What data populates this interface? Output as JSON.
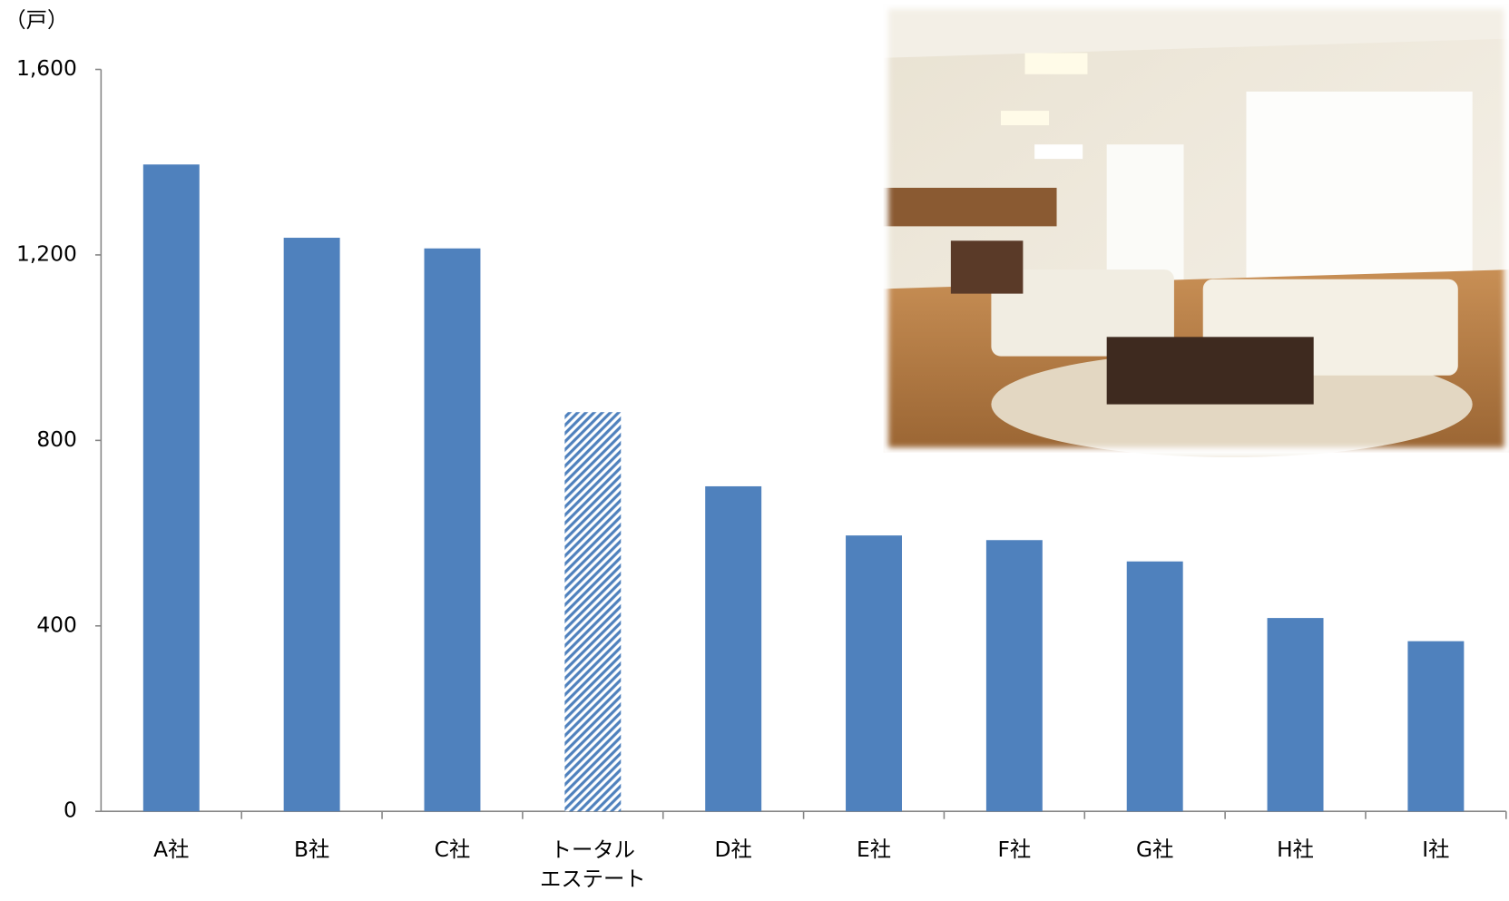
{
  "chart_data": {
    "type": "bar",
    "unit_label": "（戸）",
    "categories": [
      "A社",
      "B社",
      "C社",
      "トータル\nエステート",
      "D社",
      "E社",
      "F社",
      "G社",
      "H社",
      "I社"
    ],
    "values": [
      1395,
      1237,
      1214,
      861,
      701,
      595,
      585,
      539,
      417,
      367
    ],
    "color": "#4f81bd",
    "fills": [
      "solid",
      "solid",
      "solid",
      "hatch",
      "solid",
      "solid",
      "solid",
      "solid",
      "solid",
      "solid"
    ],
    "ylim": [
      0,
      1600
    ],
    "yticks": [
      0,
      400,
      800,
      {
        "value": 1200,
        "label": "1,200"
      },
      {
        "value": 1600,
        "label": "1,600"
      }
    ],
    "grid": false
  }
}
